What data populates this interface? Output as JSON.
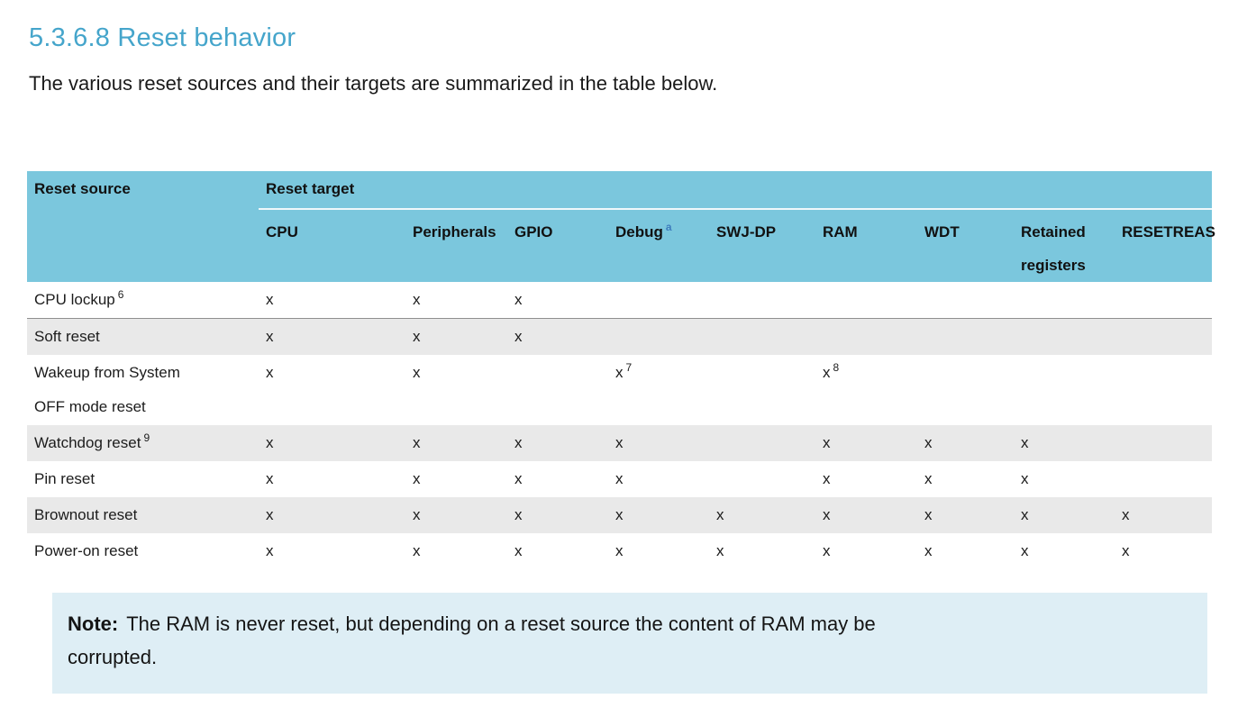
{
  "page": {
    "heading": "5.3.6.8 Reset behavior",
    "intro": "The various reset sources and their targets are summarized in the table below."
  },
  "table": {
    "source_header": "Reset source",
    "target_header": "Reset target",
    "target_columns": [
      {
        "label": "CPU",
        "sup": ""
      },
      {
        "label": "Peripherals",
        "sup": ""
      },
      {
        "label": "GPIO",
        "sup": ""
      },
      {
        "label": "Debug",
        "sup": "a"
      },
      {
        "label": "SWJ-DP",
        "sup": ""
      },
      {
        "label": "RAM",
        "sup": ""
      },
      {
        "label": "WDT",
        "sup": ""
      },
      {
        "label": "Retained registers",
        "sup": ""
      },
      {
        "label": "RESETREAS",
        "sup": ""
      }
    ],
    "rows": [
      {
        "source": "CPU lockup",
        "sup": "6",
        "cells": [
          "x",
          "x",
          "x",
          "",
          "",
          "",
          "",
          "",
          ""
        ]
      },
      {
        "source": "Soft reset",
        "sup": "",
        "cells": [
          "x",
          "x",
          "x",
          "",
          "",
          "",
          "",
          "",
          ""
        ]
      },
      {
        "source": "Wakeup from System OFF mode reset",
        "sup": "",
        "cells": [
          "x",
          "x",
          "",
          "x^7",
          "",
          "x^8",
          "",
          "",
          ""
        ]
      },
      {
        "source": "Watchdog reset",
        "sup": "9",
        "cells": [
          "x",
          "x",
          "x",
          "x",
          "",
          "x",
          "x",
          "x",
          ""
        ]
      },
      {
        "source": "Pin reset",
        "sup": "",
        "cells": [
          "x",
          "x",
          "x",
          "x",
          "",
          "x",
          "x",
          "x",
          ""
        ]
      },
      {
        "source": "Brownout reset",
        "sup": "",
        "cells": [
          "x",
          "x",
          "x",
          "x",
          "x",
          "x",
          "x",
          "x",
          "x"
        ]
      },
      {
        "source": "Power-on reset",
        "sup": "",
        "cells": [
          "x",
          "x",
          "x",
          "x",
          "x",
          "x",
          "x",
          "x",
          "x"
        ]
      }
    ]
  },
  "note": {
    "label": "Note:",
    "text": "The RAM is never reset, but depending on a reset source the content of RAM may be corrupted."
  },
  "colors": {
    "title_blue": "#45a5cb",
    "header_bg": "#7bc7dd",
    "row_shade": "#e9e9e9",
    "note_bg": "#deeef5",
    "rule_gray": "#8f8f8f",
    "link_blue": "#3e7dbd",
    "text_dark": "#1a1a1a"
  }
}
